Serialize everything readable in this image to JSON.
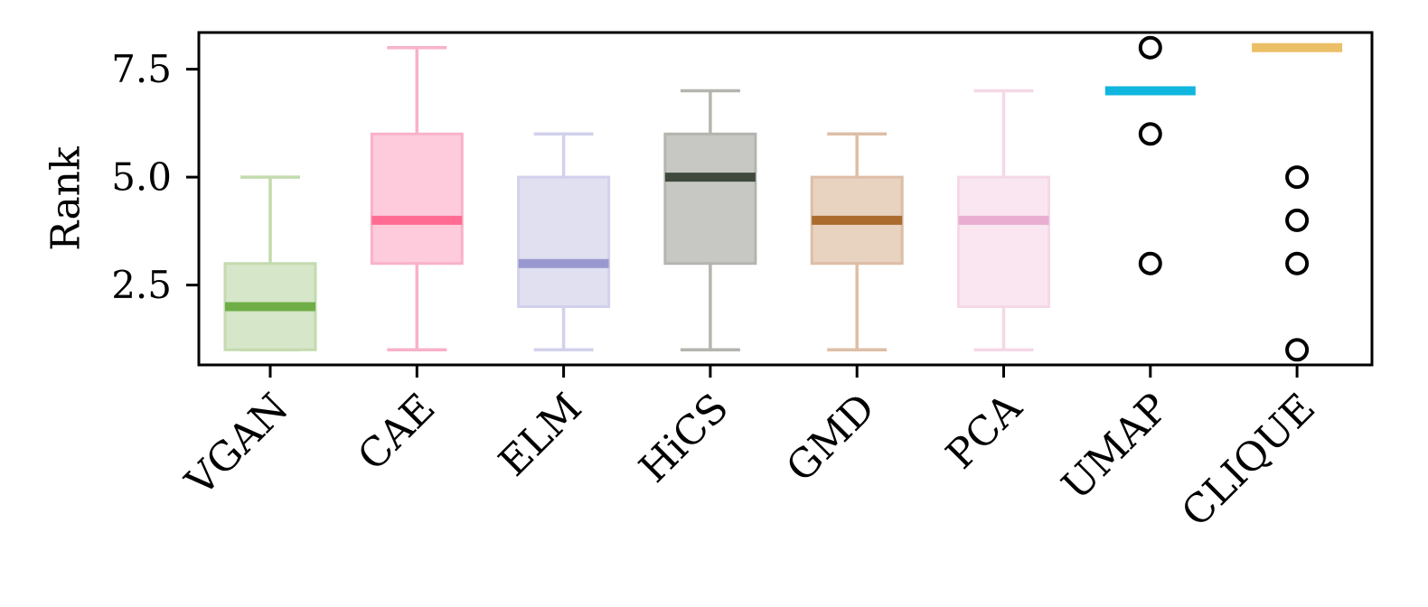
{
  "chart_data": {
    "type": "box",
    "title": "",
    "xlabel": "",
    "ylabel": "Rank",
    "ylim": [
      0.65,
      8.35
    ],
    "yticks": [
      2.5,
      5.0,
      7.5
    ],
    "ytick_labels": [
      "2.5",
      "5.0",
      "7.5"
    ],
    "grid": false,
    "categories": [
      "VGAN",
      "CAE",
      "ELM",
      "HiCS",
      "GMD",
      "PCA",
      "UMAP",
      "CLIQUE"
    ],
    "boxes": [
      {
        "name": "VGAN",
        "whislo": 1,
        "q1": 1,
        "med": 2,
        "q3": 3,
        "whishi": 5,
        "fliers": [],
        "box_color": "#d6e6c9",
        "median_color": "#6fae47",
        "edge_color": "#c3dbaf"
      },
      {
        "name": "CAE",
        "whislo": 1,
        "q1": 3,
        "med": 4,
        "q3": 6,
        "whishi": 8,
        "fliers": [],
        "box_color": "#fdcbdb",
        "median_color": "#ff6b93",
        "edge_color": "#f8b2c8"
      },
      {
        "name": "ELM",
        "whislo": 1,
        "q1": 2,
        "med": 3,
        "q3": 5,
        "whishi": 6,
        "fliers": [],
        "box_color": "#e1e0f1",
        "median_color": "#9999cf",
        "edge_color": "#d2d1ec"
      },
      {
        "name": "HiCS",
        "whislo": 1,
        "q1": 3,
        "med": 5,
        "q3": 6,
        "whishi": 7,
        "fliers": [],
        "box_color": "#c7c8c3",
        "median_color": "#3f4a3c",
        "edge_color": "#b3b5ae"
      },
      {
        "name": "GMD",
        "whislo": 1,
        "q1": 3,
        "med": 4,
        "q3": 5,
        "whishi": 6,
        "fliers": [],
        "box_color": "#e8d2c0",
        "median_color": "#ab6a2e",
        "edge_color": "#ddbea6"
      },
      {
        "name": "PCA",
        "whislo": 1,
        "q1": 2,
        "med": 4,
        "q3": 5,
        "whishi": 7,
        "fliers": [],
        "box_color": "#f9e6f0",
        "median_color": "#e8add0",
        "edge_color": "#f5d8e7"
      },
      {
        "name": "UMAP",
        "whislo": 7,
        "q1": 7,
        "med": 7,
        "q3": 7,
        "whishi": 7,
        "fliers": [
          8,
          6,
          3
        ],
        "box_color": "#ffffff",
        "median_color": "#10b6de",
        "edge_color": "#10b6de"
      },
      {
        "name": "CLIQUE",
        "whislo": 8,
        "q1": 8,
        "med": 8,
        "q3": 8,
        "whishi": 8,
        "fliers": [
          5,
          4,
          3,
          1
        ],
        "box_color": "#ffffff",
        "median_color": "#ebbf66",
        "edge_color": "#ebbf66"
      }
    ]
  }
}
